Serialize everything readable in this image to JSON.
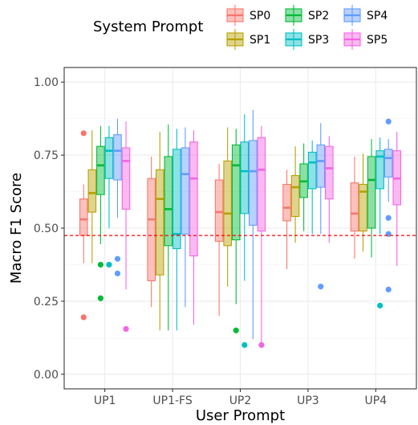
{
  "chart_data": {
    "type": "boxplot",
    "xlabel": "User Prompt",
    "ylabel": "Macro F1 Score",
    "ylim": [
      -0.05,
      1.05
    ],
    "yticks": [
      0.0,
      0.25,
      0.5,
      0.75,
      1.0
    ],
    "ytick_labels": [
      "0.00",
      "0.25",
      "0.50",
      "0.75",
      "1.00"
    ],
    "categories": [
      "UP1",
      "UP1-FS",
      "UP2",
      "UP3",
      "UP4"
    ],
    "grid": true,
    "legend": {
      "title": "System Prompt",
      "position": "top",
      "entries": [
        "SP0",
        "SP1",
        "SP2",
        "SP3",
        "SP4",
        "SP5"
      ]
    },
    "reference_line": {
      "y": 0.475,
      "color": "#ff0000",
      "style": "dashed"
    },
    "series": [
      {
        "name": "SP0",
        "color": "#F8766D",
        "boxes": [
          {
            "lower": 0.38,
            "q1": 0.475,
            "median": 0.53,
            "q3": 0.6,
            "upper": 0.65,
            "outliers": [
              0.825,
              0.195
            ]
          },
          {
            "lower": 0.23,
            "q1": 0.32,
            "median": 0.53,
            "q3": 0.67,
            "upper": 0.745,
            "outliers": []
          },
          {
            "lower": 0.2,
            "q1": 0.455,
            "median": 0.555,
            "q3": 0.665,
            "upper": 0.72,
            "outliers": []
          },
          {
            "lower": 0.36,
            "q1": 0.525,
            "median": 0.57,
            "q3": 0.65,
            "upper": 0.7,
            "outliers": []
          },
          {
            "lower": 0.395,
            "q1": 0.49,
            "median": 0.55,
            "q3": 0.655,
            "upper": 0.745,
            "outliers": []
          }
        ]
      },
      {
        "name": "SP1",
        "color": "#B79F00",
        "boxes": [
          {
            "lower": 0.38,
            "q1": 0.555,
            "median": 0.62,
            "q3": 0.7,
            "upper": 0.835,
            "outliers": []
          },
          {
            "lower": 0.15,
            "q1": 0.34,
            "median": 0.6,
            "q3": 0.7,
            "upper": 0.83,
            "outliers": []
          },
          {
            "lower": 0.3,
            "q1": 0.44,
            "median": 0.55,
            "q3": 0.73,
            "upper": 0.845,
            "outliers": []
          },
          {
            "lower": 0.45,
            "q1": 0.54,
            "median": 0.64,
            "q3": 0.68,
            "upper": 0.78,
            "outliers": []
          },
          {
            "lower": 0.42,
            "q1": 0.49,
            "median": 0.625,
            "q3": 0.65,
            "upper": 0.755,
            "outliers": []
          }
        ]
      },
      {
        "name": "SP2",
        "color": "#00BA38",
        "boxes": [
          {
            "lower": 0.445,
            "q1": 0.615,
            "median": 0.715,
            "q3": 0.78,
            "upper": 0.85,
            "outliers": [
              0.375,
              0.26
            ]
          },
          {
            "lower": 0.15,
            "q1": 0.44,
            "median": 0.565,
            "q3": 0.745,
            "upper": 0.855,
            "outliers": []
          },
          {
            "lower": 0.24,
            "q1": 0.46,
            "median": 0.715,
            "q3": 0.785,
            "upper": 0.84,
            "outliers": [
              0.15
            ]
          },
          {
            "lower": 0.49,
            "q1": 0.605,
            "median": 0.66,
            "q3": 0.72,
            "upper": 0.79,
            "outliers": []
          },
          {
            "lower": 0.4,
            "q1": 0.5,
            "median": 0.665,
            "q3": 0.745,
            "upper": 0.805,
            "outliers": []
          }
        ]
      },
      {
        "name": "SP3",
        "color": "#00BFC4",
        "boxes": [
          {
            "lower": 0.5,
            "q1": 0.67,
            "median": 0.765,
            "q3": 0.81,
            "upper": 0.85,
            "outliers": [
              0.375
            ]
          },
          {
            "lower": 0.15,
            "q1": 0.43,
            "median": 0.48,
            "q3": 0.77,
            "upper": 0.84,
            "outliers": []
          },
          {
            "lower": 0.32,
            "q1": 0.55,
            "median": 0.695,
            "q3": 0.795,
            "upper": 0.89,
            "outliers": [
              0.1
            ]
          },
          {
            "lower": 0.48,
            "q1": 0.635,
            "median": 0.725,
            "q3": 0.76,
            "upper": 0.8,
            "outliers": []
          },
          {
            "lower": 0.48,
            "q1": 0.635,
            "median": 0.745,
            "q3": 0.765,
            "upper": 0.81,
            "outliers": [
              0.235
            ]
          }
        ]
      },
      {
        "name": "SP4",
        "color": "#619CFF",
        "boxes": [
          {
            "lower": 0.535,
            "q1": 0.665,
            "median": 0.765,
            "q3": 0.82,
            "upper": 0.875,
            "outliers": [
              0.395,
              0.345
            ]
          },
          {
            "lower": 0.23,
            "q1": 0.48,
            "median": 0.685,
            "q3": 0.775,
            "upper": 0.845,
            "outliers": []
          },
          {
            "lower": 0.12,
            "q1": 0.51,
            "median": 0.695,
            "q3": 0.8,
            "upper": 0.905,
            "outliers": []
          },
          {
            "lower": 0.48,
            "q1": 0.64,
            "median": 0.73,
            "q3": 0.785,
            "upper": 0.86,
            "outliers": [
              0.3
            ]
          },
          {
            "lower": 0.59,
            "q1": 0.675,
            "median": 0.74,
            "q3": 0.77,
            "upper": 0.805,
            "outliers": [
              0.865,
              0.535,
              0.48,
              0.29
            ]
          }
        ]
      },
      {
        "name": "SP5",
        "color": "#F564E3",
        "boxes": [
          {
            "lower": 0.29,
            "q1": 0.565,
            "median": 0.73,
            "q3": 0.775,
            "upper": 0.865,
            "outliers": [
              0.155
            ]
          },
          {
            "lower": 0.17,
            "q1": 0.405,
            "median": 0.67,
            "q3": 0.795,
            "upper": 0.835,
            "outliers": []
          },
          {
            "lower": 0.1,
            "q1": 0.49,
            "median": 0.7,
            "q3": 0.81,
            "upper": 0.85,
            "outliers": [
              0.1
            ]
          },
          {
            "lower": 0.45,
            "q1": 0.6,
            "median": 0.705,
            "q3": 0.78,
            "upper": 0.815,
            "outliers": []
          },
          {
            "lower": 0.37,
            "q1": 0.58,
            "median": 0.67,
            "q3": 0.765,
            "upper": 0.83,
            "outliers": []
          }
        ]
      }
    ]
  }
}
